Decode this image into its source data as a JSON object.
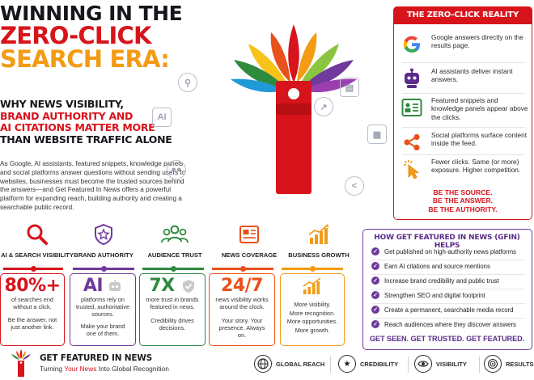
{
  "headline": {
    "line1": "WINNING IN THE",
    "line2": "ZERO-CLICK",
    "line3": "SEARCH ERA:",
    "sub1": "WHY NEWS VISIBILITY,",
    "sub2": "BRAND AUTHORITY AND",
    "sub3": "AI CITATIONS MATTER MORE",
    "sub4": "THAN WEBSITE TRAFFIC ALONE"
  },
  "intro": "As Google, AI assistants, featured snippets, knowledge panels and social platforms answer questions without sending users to websites, businesses must become the trusted sources behind the answers—and Get Featured In News offers a powerful platform for expanding reach, building authority and creating a searchable public record.",
  "center_icons": [
    "search-icon",
    "ai-chip-icon",
    "users-icon",
    "news-icon",
    "chart-icon",
    "calendar-icon",
    "share-icon"
  ],
  "zero_click": {
    "title": "THE ZERO-CLICK REALITY",
    "items": [
      {
        "icon": "google-icon",
        "text": "Google answers directly on the results page."
      },
      {
        "icon": "robot-icon",
        "text": "AI assistants deliver instant answers."
      },
      {
        "icon": "snippet-card-icon",
        "text": "Featured snippets and knowledge panels appear above the clicks."
      },
      {
        "icon": "share-icon",
        "text": "Social platforms surface content inside the feed."
      },
      {
        "icon": "cursor-click-icon",
        "text": "Fewer clicks. Same (or more) exposure. Higher competition."
      }
    ],
    "footer1": "BE THE SOURCE.",
    "footer2": "BE THE ANSWER.",
    "footer3": "BE THE AUTHORITY."
  },
  "pillars": [
    {
      "label": "AI & SEARCH VISIBILITY",
      "color": "#d7141b",
      "stat": "80%+",
      "text": "of searches end without a click.",
      "note": "Be the answer, not just another link."
    },
    {
      "label": "BRAND AUTHORITY",
      "color": "#6f3a9b",
      "stat": "AI",
      "text": "platforms rely on trusted, authoritative sources.",
      "note": "Make your brand one of them."
    },
    {
      "label": "AUDIENCE TRUST",
      "color": "#2e8b3e",
      "stat": "7X",
      "text": "more trust in brands featured in news.",
      "note": "Credibility drives decisions."
    },
    {
      "label": "NEWS COVERAGE",
      "color": "#e8501c",
      "stat": "24/7",
      "text": "news visibility works around the clock.",
      "note": "Your story. Your presence. Always on."
    },
    {
      "label": "BUSINESS GROWTH",
      "color": "#f39b14",
      "lines": [
        "More visibility.",
        "More recognition.",
        "More opportunities.",
        "More growth."
      ]
    }
  ],
  "gfin": {
    "title": "HOW GET FEATURED IN NEWS (GFIN) HELPS",
    "items": [
      "Get published on high-authority news platforms",
      "Earn AI citations and source mentions",
      "Increase brand credibility and public trust",
      "Strengthen SEO and digital footprint",
      "Create a permanent, searchable media record",
      "Reach audiences where they discover answers"
    ],
    "footer": "GET SEEN. GET TRUSTED. GET FEATURED."
  },
  "footer": {
    "brand": "GET FEATURED IN NEWS",
    "tag_pre": "Turning ",
    "tag_hl": "Your News",
    "tag_post": " Into Global Recognition",
    "badges": [
      {
        "icon": "globe-icon",
        "label": "GLOBAL REACH"
      },
      {
        "icon": "star-shield-icon",
        "label": "CREDIBILITY"
      },
      {
        "icon": "eye-icon",
        "label": "VISIBILITY"
      },
      {
        "icon": "target-icon",
        "label": "RESULTS"
      }
    ]
  },
  "colors": {
    "red": "#d7141b",
    "orange": "#f39b14",
    "purple": "#6f3a9b",
    "green": "#2e8b3e",
    "deep_orange": "#e8501c"
  }
}
